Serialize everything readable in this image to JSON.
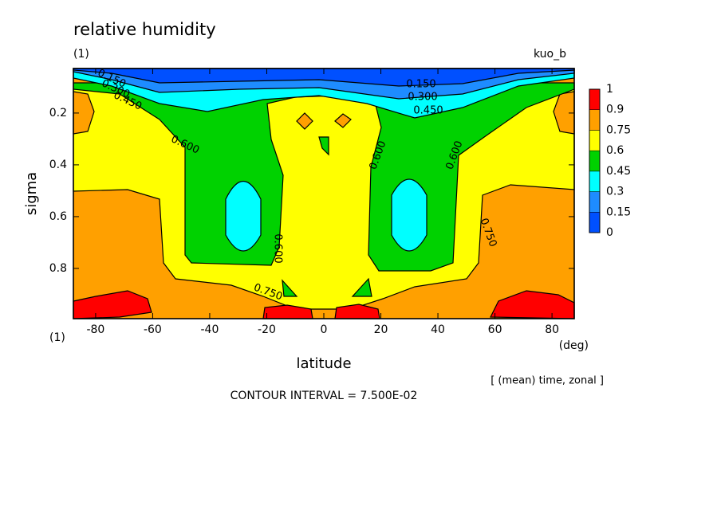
{
  "chart_data": {
    "type": "contour",
    "title": "relative humidity",
    "subtitle": "(1)",
    "run_label": "kuo_b",
    "x_label": "latitude",
    "x_unit": "(deg)",
    "y_label": "sigma",
    "y_unit": "(1)",
    "note": "[ (mean) time, zonal ]",
    "contour_interval": "CONTOUR INTERVAL = 7.500E-02",
    "xlim": [
      -87.8,
      87.8
    ],
    "xticks": [
      -80,
      -60,
      -40,
      -20,
      0,
      20,
      40,
      60,
      80
    ],
    "ylim": [
      0.028,
      0.994
    ],
    "y_inverted": true,
    "yticks": [
      0.2,
      0.4,
      0.6,
      0.8
    ],
    "levels": [
      0,
      0.15,
      0.3,
      0.45,
      0.6,
      0.75,
      0.9,
      1
    ],
    "colors": [
      "#0050ff",
      "#1e8cff",
      "#00ffff",
      "#00d200",
      "#ffff00",
      "#ffa000",
      "#ff0000"
    ],
    "contour_labels": [
      "0.150",
      "0.300",
      "0.450",
      "0.150",
      "0.300",
      "0.450",
      "0.600",
      "0.600",
      "0.600",
      "0.750",
      "0.600",
      "0.750"
    ]
  }
}
